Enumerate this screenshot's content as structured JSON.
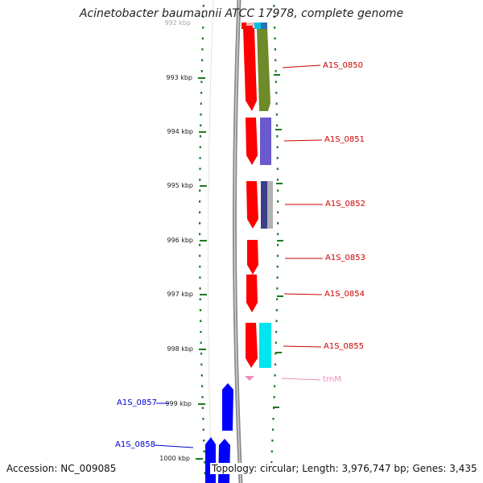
{
  "title": "Acinetobacter baumannii ATCC 17978, complete genome",
  "accession": "Accession: NC_009085",
  "topology": "Topology: circular; Length: 3,976,747 bp; Genes: 3,435",
  "scale_labels": [
    "992 kbp",
    "993 kbp",
    "994 kbp",
    "995 kbp",
    "996 kbp",
    "997 kbp",
    "998 kbp",
    "999 kbp",
    "1000 kbp"
  ],
  "genes": [
    {
      "name": "A1S_0850",
      "color": "#cc0000"
    },
    {
      "name": "A1S_0851",
      "color": "#cc0000"
    },
    {
      "name": "A1S_0852",
      "color": "#cc0000"
    },
    {
      "name": "A1S_0853",
      "color": "#cc0000"
    },
    {
      "name": "A1S_0854",
      "color": "#cc0000"
    },
    {
      "name": "A1S_0855",
      "color": "#cc0000"
    },
    {
      "name": "trnM",
      "color": "#f08cc0"
    },
    {
      "name": "A1S_0857",
      "color": "#0000cc"
    },
    {
      "name": "A1S_0858",
      "color": "#0000cc"
    }
  ],
  "colors": {
    "forward_strand": "#ff0000",
    "reverse_strand": "#0000ff",
    "ruler_ticks": "#1e7a1e",
    "backbone": "#8a8a8a",
    "cog_olive": "#6f8a2a",
    "cog_slate": "#6a5acd",
    "cog_navy": "#3d3d8a",
    "cog_cyan": "#00e5ee",
    "trna": "#f08cc0"
  }
}
